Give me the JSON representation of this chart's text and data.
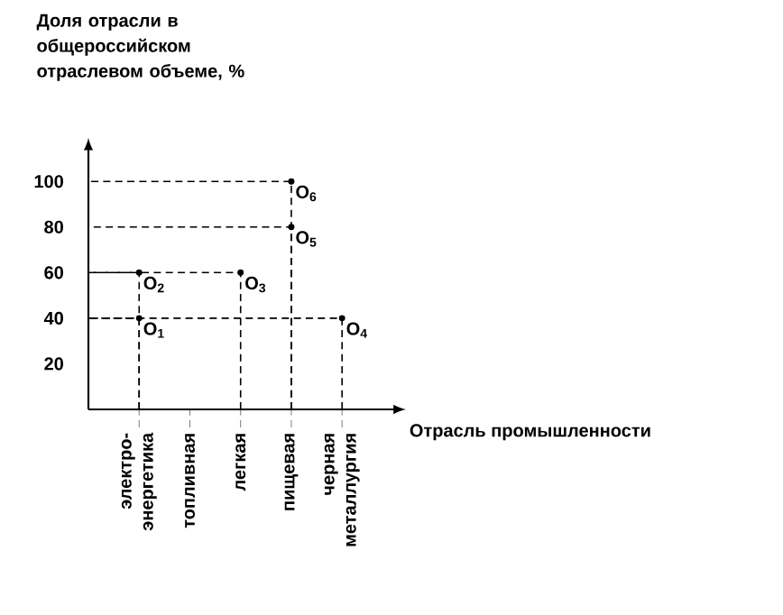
{
  "chart_data": {
    "type": "lollipop",
    "ylabel": "Доля отрасли в общероссийском отраслевом объеме, %",
    "xlabel": "Отрасль промышленности",
    "categories": [
      "электро-энергетика",
      "топливная",
      "легкая",
      "пищевая",
      "черная металлургия"
    ],
    "ylim": [
      0,
      115
    ],
    "yticks": [
      20,
      40,
      60,
      80,
      100
    ],
    "marker": "circle",
    "line_style": "dashed",
    "grid": false,
    "series": [
      {
        "name": "O$_{1}$",
        "color": "#000000",
        "values": [
          40,
          null,
          null,
          null,
          null
        ]
      },
      {
        "name": "O$_{2}$",
        "color": "#000000",
        "values": [
          60,
          null,
          null,
          null,
          null
        ]
      },
      {
        "name": "O$_{3}$",
        "color": "#000000",
        "values": [
          null,
          null,
          60,
          null,
          null
        ]
      },
      {
        "name": "O$_{4}$",
        "color": "#000000",
        "values": [
          null,
          null,
          null,
          null,
          40
        ]
      },
      {
        "name": "O$_{5}$",
        "color": "#000000",
        "values": [
          null,
          null,
          null,
          80,
          null
        ]
      },
      {
        "name": "O$_{6}$",
        "color": "#000000",
        "values": [
          null,
          null,
          null,
          100,
          null
        ]
      }
    ]
  }
}
